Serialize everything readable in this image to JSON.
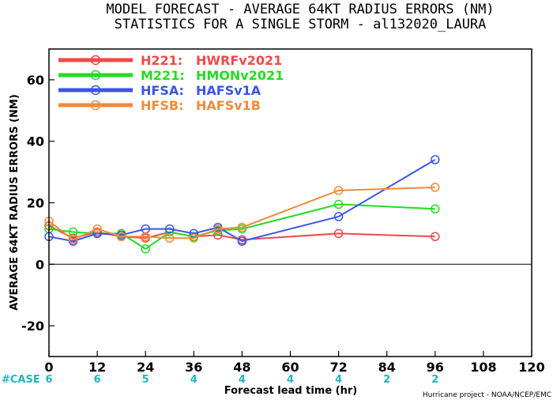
{
  "chart_data": {
    "type": "line",
    "title": "MODEL FORECAST - AVERAGE 64KT RADIUS ERRORS (NM)",
    "subtitle": "STATISTICS FOR A SINGLE STORM - al132020_LAURA",
    "xlabel": "Forecast lead time (hr)",
    "ylabel": "AVERAGE 64KT RADIUS ERRORS (NM)",
    "xlim": [
      0,
      120
    ],
    "ylim": [
      -30,
      70
    ],
    "x_ticks": [
      0,
      12,
      24,
      36,
      48,
      60,
      72,
      84,
      96,
      108,
      120
    ],
    "y_ticks": [
      -20,
      0,
      20,
      40,
      60
    ],
    "zero_line": true,
    "legend_position": "top-left",
    "case_label": "#CASE",
    "cases": [
      {
        "x": 0,
        "n": "6"
      },
      {
        "x": 12,
        "n": "6"
      },
      {
        "x": 24,
        "n": "5"
      },
      {
        "x": 36,
        "n": "4"
      },
      {
        "x": 48,
        "n": "4"
      },
      {
        "x": 60,
        "n": "4"
      },
      {
        "x": 72,
        "n": "4"
      },
      {
        "x": 84,
        "n": "2"
      },
      {
        "x": 96,
        "n": "2"
      }
    ],
    "credit": "Hurricane project - NOAA/NCEP/EMC",
    "x": [
      0,
      6,
      12,
      18,
      24,
      30,
      36,
      42,
      48,
      72,
      96
    ],
    "series": [
      {
        "code": "H221:",
        "name": "HWRFv2021",
        "color": "#f2484a",
        "values": [
          12.5,
          8.5,
          10.5,
          9.0,
          8.5,
          10.5,
          9.0,
          9.5,
          8.0,
          10.0,
          9.0
        ]
      },
      {
        "code": "M221:",
        "name": "HMONv2021",
        "color": "#22dd22",
        "values": [
          11.5,
          10.5,
          10.0,
          10.0,
          5.0,
          10.5,
          9.0,
          11.0,
          11.5,
          19.5,
          18.0
        ]
      },
      {
        "code": "HFSA:",
        "name": "HAFSv1A",
        "color": "#3a55e8",
        "values": [
          9.0,
          7.5,
          10.0,
          9.5,
          11.5,
          11.5,
          10.0,
          12.0,
          7.5,
          15.5,
          34.0
        ]
      },
      {
        "code": "HFSB:",
        "name": "HAFSv1B",
        "color": "#f08a3c",
        "values": [
          14.0,
          8.0,
          11.5,
          9.0,
          9.0,
          8.5,
          8.5,
          11.5,
          12.0,
          24.0,
          25.0
        ]
      }
    ]
  }
}
